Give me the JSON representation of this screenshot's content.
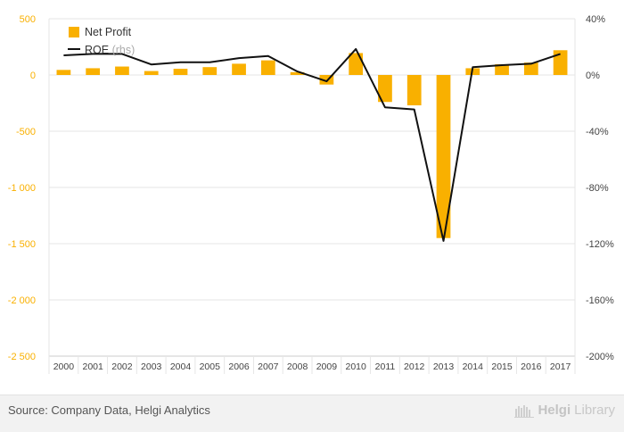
{
  "chart_data": {
    "type": "bar+line",
    "categories": [
      "2000",
      "2001",
      "2002",
      "2003",
      "2004",
      "2005",
      "2006",
      "2007",
      "2008",
      "2009",
      "2010",
      "2011",
      "2012",
      "2013",
      "2014",
      "2015",
      "2016",
      "2017"
    ],
    "series": [
      {
        "name": "Net Profit",
        "type": "bar",
        "axis": "left",
        "color": "#f9b000",
        "values": [
          45,
          60,
          75,
          35,
          55,
          70,
          100,
          130,
          25,
          -85,
          195,
          -240,
          -270,
          -1450,
          60,
          95,
          110,
          220
        ]
      },
      {
        "name": "ROE",
        "name_suffix": "(rhs)",
        "type": "line",
        "axis": "right",
        "color": "#111111",
        "values": [
          14,
          15,
          15,
          7.5,
          9,
          9,
          12,
          13.5,
          2.5,
          -4.5,
          18.5,
          -23,
          -24.5,
          -118,
          5.5,
          7,
          8,
          15
        ]
      }
    ],
    "left_axis": {
      "ylim": [
        -2500,
        500
      ],
      "ticks": [
        500,
        0,
        -500,
        -1000,
        -1500,
        -2000,
        -2500
      ],
      "tick_labels": [
        "500",
        "0",
        "-500",
        "-1 000",
        "-1 500",
        "-2 000",
        "-2 500"
      ]
    },
    "right_axis": {
      "ylim": [
        -200,
        40
      ],
      "ticks": [
        40,
        0,
        -40,
        -80,
        -120,
        -160,
        -200
      ],
      "tick_labels": [
        "40%",
        "0%",
        "-40%",
        "-80%",
        "-120%",
        "-160%",
        "-200%"
      ]
    },
    "grid": true,
    "legend_position": "top-left"
  },
  "footer": {
    "source": "Source: Company Data, Helgi Analytics",
    "brand_bold": "Helgi",
    "brand_light": "Library"
  },
  "colors": {
    "bar": "#f9b000",
    "line": "#111111",
    "grid": "#e6e6e6",
    "zero_label": "#f9b000",
    "tick_text": "#f9b000"
  }
}
